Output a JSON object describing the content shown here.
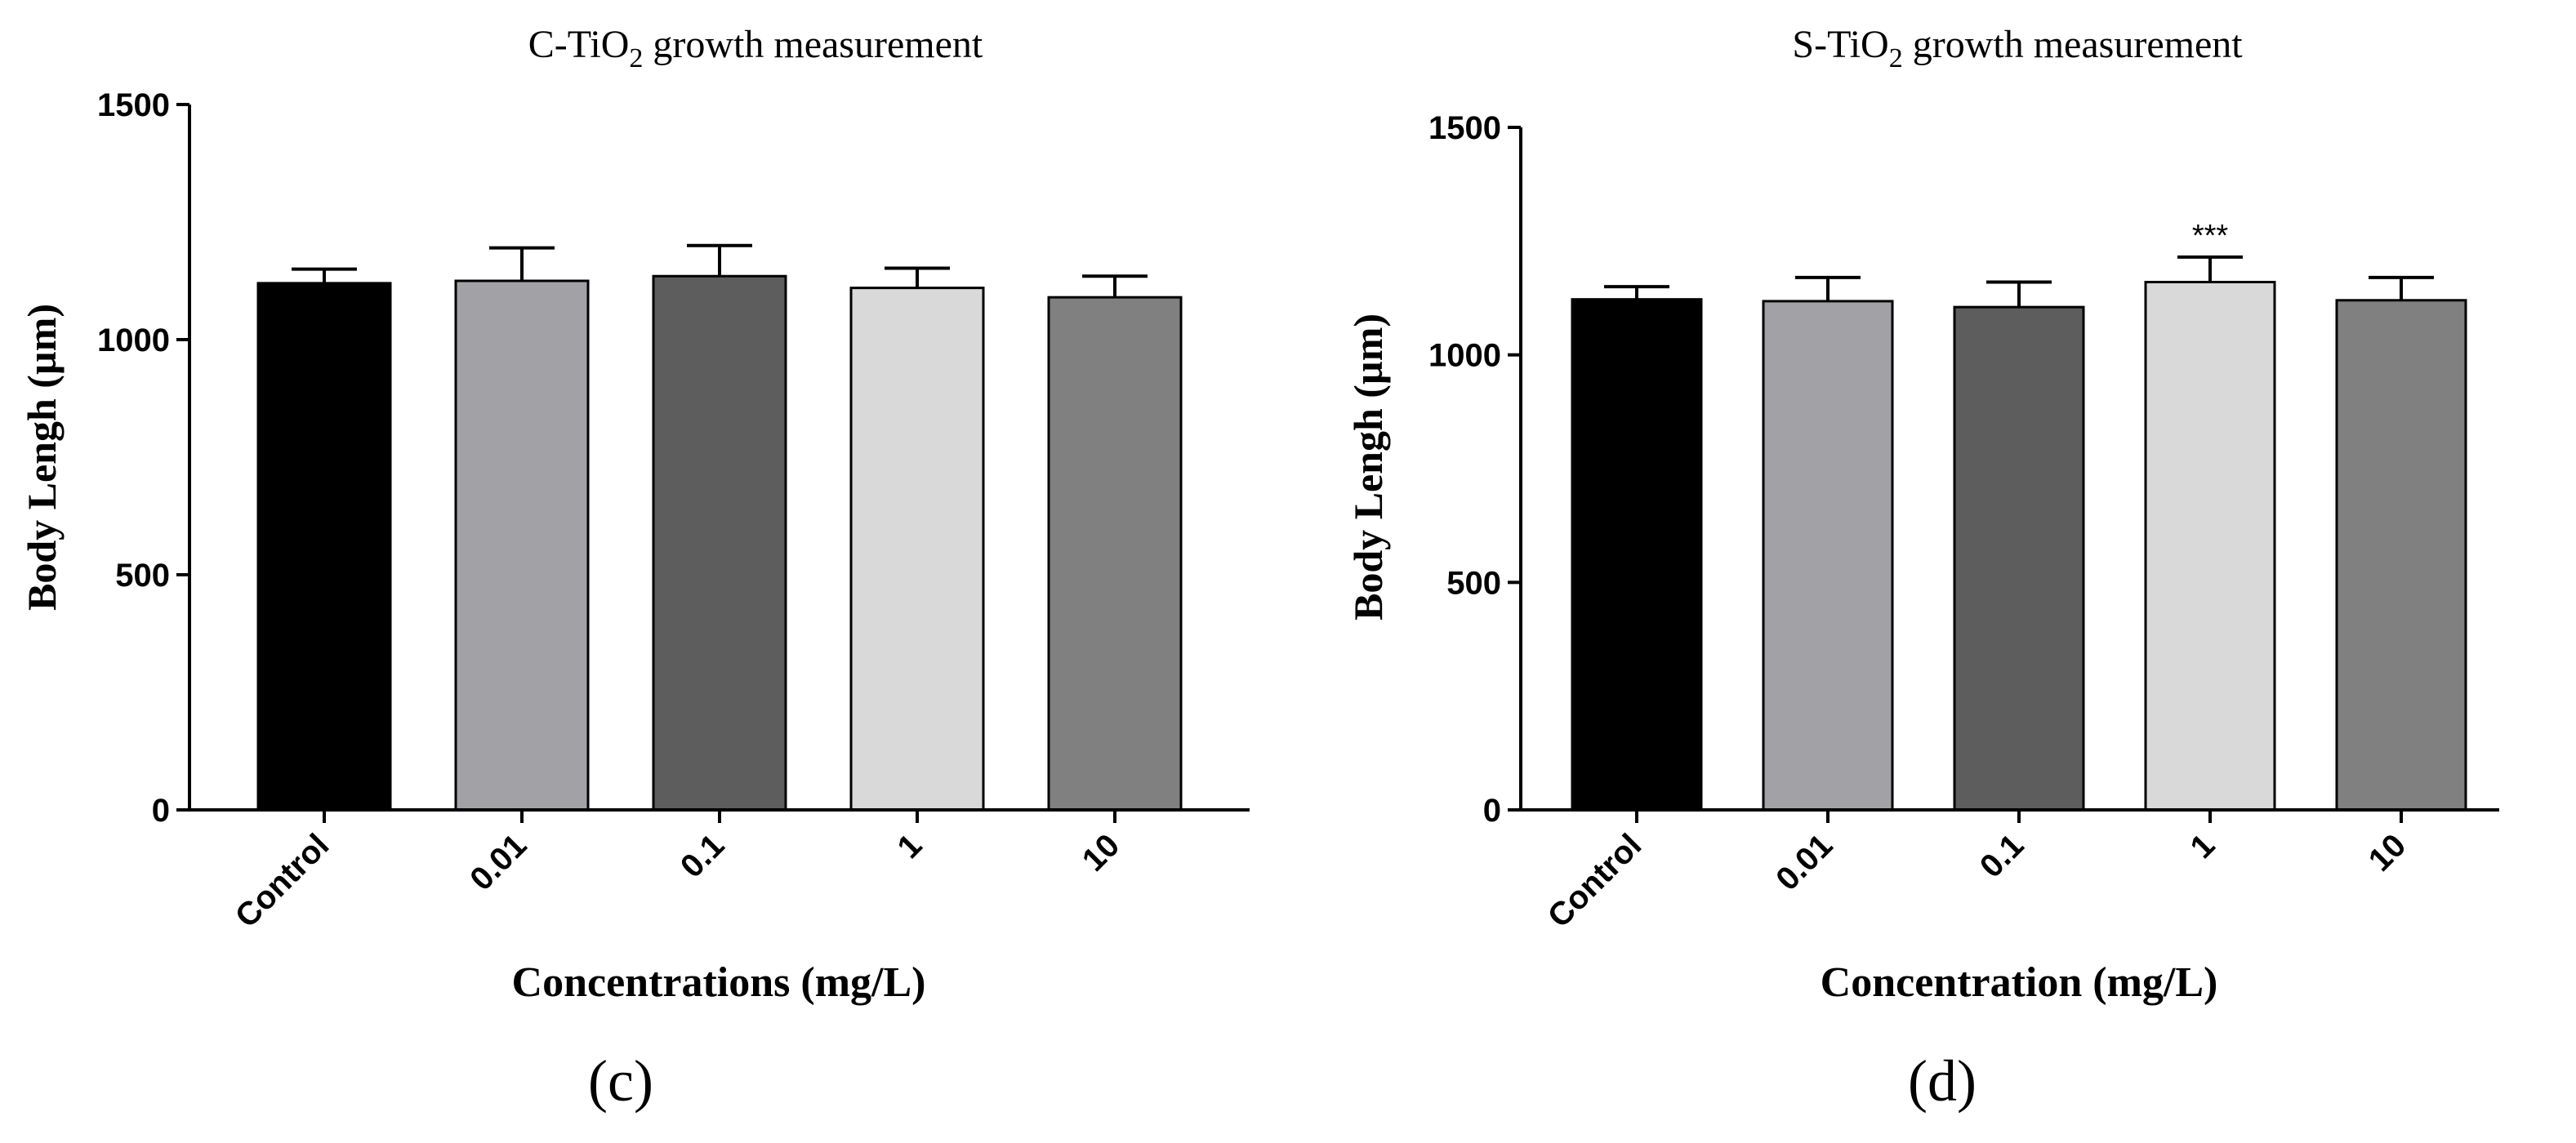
{
  "chart_data": [
    {
      "type": "bar",
      "title_prefix": "C-TiO",
      "title_sub": "2",
      "title_suffix": " growth measurement",
      "title": "C-TiO2 growth measurement",
      "ylabel": "Body Lengh (µm)",
      "xlabel": "Concentrations (mg/L)",
      "panel_label": "(c)",
      "categories": [
        "Control",
        "0.01",
        "0.1",
        "1",
        "10"
      ],
      "values": [
        1120,
        1125,
        1135,
        1110,
        1090
      ],
      "errors": [
        30,
        70,
        65,
        42,
        45
      ],
      "bar_colors": [
        "#000000",
        "#a2a1a6",
        "#5d5d5d",
        "#d9d9d9",
        "#808080"
      ],
      "annotations": [
        "",
        "",
        "",
        "",
        ""
      ],
      "ylim": [
        0,
        1500
      ],
      "yticks": [
        0,
        500,
        1000,
        1500
      ],
      "grid": false
    },
    {
      "type": "bar",
      "title_prefix": "S-TiO",
      "title_sub": "2",
      "title_suffix": " growth measurement",
      "title": "S-TiO2 growth measurement",
      "ylabel": "Body Lengh (µm)",
      "xlabel": "Concentration (mg/L)",
      "panel_label": "(d)",
      "categories": [
        "Control",
        "0.01",
        "0.1",
        "1",
        "10"
      ],
      "values": [
        1122,
        1118,
        1105,
        1160,
        1120
      ],
      "errors": [
        28,
        52,
        55,
        55,
        50
      ],
      "bar_colors": [
        "#000000",
        "#a2a1a6",
        "#5d5d5d",
        "#d9d9d9",
        "#808080"
      ],
      "annotations": [
        "",
        "",
        "",
        "***",
        ""
      ],
      "ylim": [
        0,
        1500
      ],
      "yticks": [
        0,
        500,
        1000,
        1500
      ],
      "grid": false
    }
  ]
}
